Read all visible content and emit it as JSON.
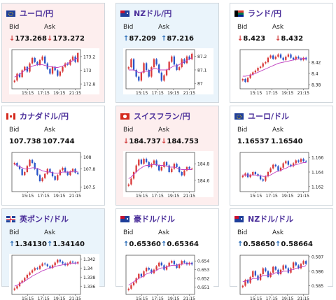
{
  "cards": [
    {
      "pair": "ユーロ/円",
      "flag": "eu",
      "bid": "173.268",
      "ask": "173.272",
      "bid_dir": "down",
      "ask_dir": "down",
      "bg": "pink",
      "yticks": [
        "173.2",
        "173",
        "172.8"
      ],
      "xticks": [
        "15:15",
        "17:15",
        "19:15",
        "21:15"
      ],
      "prices": [
        172.85,
        172.95,
        172.9,
        173.0,
        173.05,
        172.98,
        173.1,
        173.18,
        173.12,
        173.08,
        173.15,
        173.2,
        173.1,
        173.02,
        172.95,
        173.05,
        173.0,
        172.92,
        172.98,
        173.05,
        173.1,
        173.08,
        173.15,
        173.2,
        173.12,
        173.25
      ],
      "ma": [
        172.9,
        172.92,
        172.94,
        172.97,
        173.0,
        173.02,
        173.04,
        173.06,
        173.07,
        173.08,
        173.08,
        173.08,
        173.07,
        173.06,
        173.05,
        173.05,
        173.04,
        173.04,
        173.05,
        173.06,
        173.08,
        173.1,
        173.12,
        173.14,
        173.16,
        173.18
      ],
      "ylim": [
        172.75,
        173.28
      ]
    },
    {
      "pair": "NZドル/円",
      "flag": "nz",
      "bid": "87.209",
      "ask": "87.216",
      "bid_dir": "up",
      "ask_dir": "up",
      "bg": "blue",
      "yticks": [
        "87.2",
        "87.1",
        "87"
      ],
      "xticks": [
        "15:15",
        "17:15",
        "19:15",
        "21:15"
      ],
      "prices": [
        87.12,
        87.18,
        87.1,
        87.05,
        87.02,
        87.08,
        87.15,
        87.1,
        87.05,
        87.12,
        87.18,
        87.14,
        87.08,
        87.02,
        87.06,
        87.1,
        87.16,
        87.2,
        87.14,
        87.1,
        87.12,
        87.18,
        87.15,
        87.2,
        87.18,
        87.22
      ],
      "ma": [
        87.1,
        87.1,
        87.1,
        87.09,
        87.08,
        87.08,
        87.09,
        87.09,
        87.09,
        87.1,
        87.11,
        87.11,
        87.1,
        87.1,
        87.1,
        87.1,
        87.11,
        87.12,
        87.13,
        87.13,
        87.14,
        87.15,
        87.16,
        87.17,
        87.18,
        87.19
      ],
      "ylim": [
        86.97,
        87.24
      ]
    },
    {
      "pair": "ランド/円",
      "flag": "za",
      "bid": "8.423",
      "ask": "8.432",
      "bid_dir": "down",
      "ask_dir": "down",
      "bg": "white",
      "yticks": [
        "8.42",
        "8.4",
        "8.38"
      ],
      "xticks": [
        "15:15",
        "17:15",
        "19:15",
        "21:15"
      ],
      "prices": [
        8.39,
        8.385,
        8.392,
        8.398,
        8.402,
        8.405,
        8.41,
        8.412,
        8.418,
        8.42,
        8.428,
        8.432,
        8.426,
        8.43,
        8.434,
        8.428,
        8.424,
        8.43,
        8.434,
        8.428,
        8.425,
        8.43,
        8.427,
        8.424,
        8.428,
        8.425
      ],
      "ma": [
        8.395,
        8.395,
        8.396,
        8.397,
        8.398,
        8.4,
        8.402,
        8.404,
        8.406,
        8.408,
        8.41,
        8.412,
        8.414,
        8.416,
        8.418,
        8.419,
        8.42,
        8.421,
        8.422,
        8.423,
        8.424,
        8.425,
        8.426,
        8.426,
        8.427,
        8.427
      ],
      "ylim": [
        8.375,
        8.44
      ]
    },
    {
      "pair": "カナダドル/円",
      "flag": "ca",
      "bid": "107.738",
      "ask": "107.744",
      "bid_dir": "none",
      "ask_dir": "none",
      "bg": "white",
      "yticks": [
        "108",
        "107.8",
        "107.5"
      ],
      "xticks": [
        "15:15",
        "17:15",
        "19:15",
        "21:15"
      ],
      "prices": [
        107.9,
        107.85,
        107.8,
        107.7,
        107.75,
        107.85,
        107.95,
        107.9,
        107.8,
        107.7,
        107.6,
        107.65,
        107.72,
        107.8,
        107.75,
        107.68,
        107.62,
        107.7,
        107.78,
        107.82,
        107.75,
        107.7,
        107.76,
        107.8,
        107.74,
        107.72
      ],
      "ma": [
        107.88,
        107.86,
        107.84,
        107.82,
        107.8,
        107.8,
        107.81,
        107.82,
        107.82,
        107.81,
        107.79,
        107.77,
        107.76,
        107.75,
        107.75,
        107.74,
        107.73,
        107.73,
        107.74,
        107.75,
        107.75,
        107.75,
        107.75,
        107.76,
        107.76,
        107.75
      ],
      "ylim": [
        107.45,
        108.05
      ]
    },
    {
      "pair": "スイスフラン/円",
      "flag": "ch",
      "bid": "184.737",
      "ask": "184.753",
      "bid_dir": "down",
      "ask_dir": "down",
      "bg": "pink",
      "yticks": [
        "184.8",
        "184.6"
      ],
      "xticks": [
        "15:15",
        "17:15",
        "19:15",
        "21:15"
      ],
      "prices": [
        184.55,
        184.62,
        184.7,
        184.78,
        184.85,
        184.8,
        184.86,
        184.82,
        184.76,
        184.8,
        184.84,
        184.78,
        184.72,
        184.76,
        184.82,
        184.78,
        184.7,
        184.74,
        184.8,
        184.76,
        184.7,
        184.66,
        184.72,
        184.76,
        184.74,
        184.74
      ],
      "ma": [
        184.62,
        184.64,
        184.67,
        184.7,
        184.73,
        184.75,
        184.77,
        184.78,
        184.78,
        184.79,
        184.79,
        184.79,
        184.78,
        184.78,
        184.78,
        184.77,
        184.76,
        184.76,
        184.76,
        184.75,
        184.74,
        184.73,
        184.73,
        184.73,
        184.73,
        184.73
      ],
      "ylim": [
        184.48,
        184.92
      ]
    },
    {
      "pair": "ユーロ/ドル",
      "flag": "eu",
      "bid": "1.16537",
      "ask": "1.16540",
      "bid_dir": "none",
      "ask_dir": "none",
      "bg": "white",
      "yticks": [
        "1.166",
        "1.164",
        "1.162"
      ],
      "xticks": [
        "15:15",
        "17:15",
        "19:15",
        "21:15"
      ],
      "prices": [
        1.1635,
        1.1638,
        1.1633,
        1.1636,
        1.164,
        1.1637,
        1.1635,
        1.163,
        1.1628,
        1.1634,
        1.164,
        1.1645,
        1.165,
        1.1648,
        1.1642,
        1.1646,
        1.1652,
        1.1655,
        1.165,
        1.1648,
        1.1652,
        1.1656,
        1.1654,
        1.1658,
        1.1655,
        1.1654
      ],
      "ma": [
        1.1636,
        1.1636,
        1.1636,
        1.1636,
        1.1636,
        1.1636,
        1.1635,
        1.1635,
        1.1634,
        1.1634,
        1.1635,
        1.1636,
        1.1638,
        1.164,
        1.1641,
        1.1642,
        1.1644,
        1.1645,
        1.1647,
        1.1648,
        1.1649,
        1.165,
        1.1651,
        1.1652,
        1.1653,
        1.1653
      ],
      "ylim": [
        1.1615,
        1.1665
      ]
    },
    {
      "pair": "英ポンド/ドル",
      "flag": "gb",
      "bid": "1.34130",
      "ask": "1.34140",
      "bid_dir": "up",
      "ask_dir": "up",
      "bg": "blue",
      "yticks": [
        "1.342",
        "1.34",
        "1.338",
        "1.336"
      ],
      "xticks": [
        "15:15",
        "17:15",
        "19:15",
        "21:15"
      ],
      "prices": [
        1.3355,
        1.336,
        1.3368,
        1.3372,
        1.3378,
        1.3385,
        1.339,
        1.3395,
        1.34,
        1.3398,
        1.3405,
        1.341,
        1.3408,
        1.3404,
        1.34,
        1.3406,
        1.3412,
        1.3418,
        1.3414,
        1.341,
        1.3406,
        1.341,
        1.3414,
        1.3412,
        1.341,
        1.3413
      ],
      "ma": [
        1.336,
        1.3362,
        1.3365,
        1.3368,
        1.3371,
        1.3375,
        1.3378,
        1.3382,
        1.3385,
        1.3388,
        1.3391,
        1.3394,
        1.3396,
        1.3398,
        1.34,
        1.3401,
        1.3403,
        1.3405,
        1.3406,
        1.3407,
        1.3408,
        1.3409,
        1.341,
        1.341,
        1.3411,
        1.3411
      ],
      "ylim": [
        1.3345,
        1.3425
      ]
    },
    {
      "pair": "豪ドル/ドル",
      "flag": "au",
      "bid": "0.65360",
      "ask": "0.65364",
      "bid_dir": "up",
      "ask_dir": "up",
      "bg": "white",
      "yticks": [
        "0.654",
        "0.653",
        "0.652",
        "0.651"
      ],
      "xticks": [
        "15:15",
        "17:15",
        "19:15",
        "21:15"
      ],
      "prices": [
        0.6508,
        0.6512,
        0.6515,
        0.652,
        0.6525,
        0.6522,
        0.6528,
        0.6532,
        0.653,
        0.6526,
        0.653,
        0.6534,
        0.6538,
        0.6535,
        0.653,
        0.6534,
        0.6538,
        0.654,
        0.6536,
        0.6532,
        0.6536,
        0.654,
        0.6538,
        0.6536,
        0.6538,
        0.6536
      ],
      "ma": [
        0.6512,
        0.6514,
        0.6516,
        0.6518,
        0.652,
        0.6521,
        0.6523,
        0.6525,
        0.6526,
        0.6527,
        0.6528,
        0.6529,
        0.6531,
        0.6532,
        0.6532,
        0.6533,
        0.6534,
        0.6535,
        0.6535,
        0.6535,
        0.6536,
        0.6536,
        0.6537,
        0.6537,
        0.6537,
        0.6537
      ],
      "ylim": [
        0.6503,
        0.6545
      ]
    },
    {
      "pair": "NZドル/ドル",
      "flag": "nz",
      "bid": "0.58650",
      "ask": "0.58664",
      "bid_dir": "up",
      "ask_dir": "up",
      "bg": "white",
      "yticks": [
        "0.587",
        "0.586",
        "0.585"
      ],
      "xticks": [
        "15:15",
        "17:15",
        "19:15",
        "21:15"
      ],
      "prices": [
        0.585,
        0.5854,
        0.5852,
        0.5856,
        0.586,
        0.5857,
        0.5854,
        0.5858,
        0.5862,
        0.586,
        0.5856,
        0.5859,
        0.5863,
        0.5861,
        0.5858,
        0.5861,
        0.5864,
        0.5862,
        0.5859,
        0.5862,
        0.5866,
        0.5864,
        0.5862,
        0.5865,
        0.5867,
        0.5865
      ],
      "ma": [
        0.5853,
        0.5853,
        0.5854,
        0.5854,
        0.5855,
        0.5855,
        0.5855,
        0.5856,
        0.5857,
        0.5857,
        0.5857,
        0.5858,
        0.5858,
        0.5859,
        0.5859,
        0.5859,
        0.586,
        0.586,
        0.586,
        0.5861,
        0.5861,
        0.5862,
        0.5862,
        0.5863,
        0.5863,
        0.5864
      ],
      "ylim": [
        0.5845,
        0.587
      ]
    }
  ],
  "labels": {
    "bid": "Bid",
    "ask": "Ask",
    "up_arrow": "↑",
    "down_arrow": "↓"
  },
  "colors": {
    "title": "#4b2f9a",
    "up": "#2a6db8",
    "down": "#d03b3b",
    "candle_up": "#d93a3a",
    "candle_down": "#2a55c8",
    "ma": "#c040c0"
  }
}
